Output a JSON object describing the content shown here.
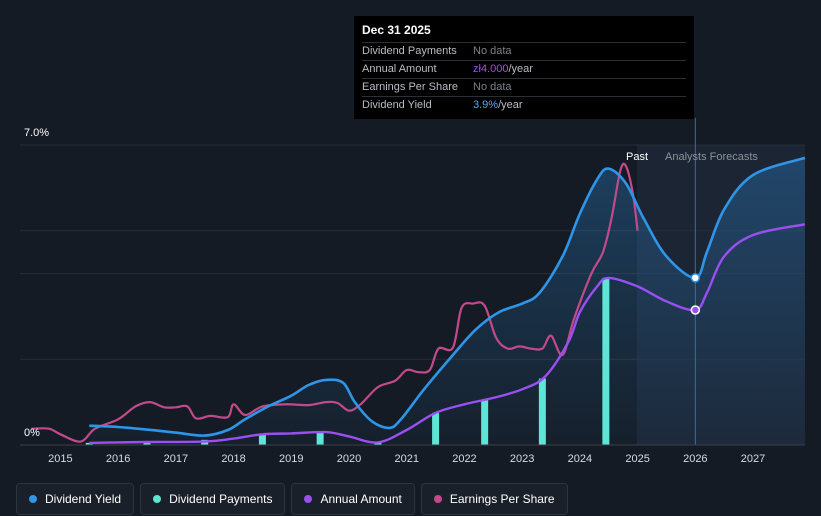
{
  "tooltip": {
    "date": "Dec 31 2025",
    "rows": [
      {
        "label": "Dividend Payments",
        "value": "No data",
        "unit": ""
      },
      {
        "label": "Annual Amount",
        "value": "zł4.000",
        "unit": "/year"
      },
      {
        "label": "Earnings Per Share",
        "value": "No data",
        "unit": ""
      },
      {
        "label": "Dividend Yield",
        "value": "3.9%",
        "unit": "/year"
      }
    ]
  },
  "colors": {
    "background": "#151b24",
    "dividend_yield": "#2e95e8",
    "dividend_payments": "#5de6d6",
    "annual_amount": "#9a4ff0",
    "earnings_per_share": "#c24a8c"
  },
  "legend": [
    {
      "label": "Dividend Yield",
      "color": "#2e95e8"
    },
    {
      "label": "Dividend Payments",
      "color": "#5de6d6"
    },
    {
      "label": "Annual Amount",
      "color": "#9a4ff0"
    },
    {
      "label": "Earnings Per Share",
      "color": "#c24a8c"
    }
  ],
  "chart_data": {
    "type": "line",
    "ylabel_top": "7.0%",
    "ylabel_bottom": "0%",
    "ylim": [
      0,
      7
    ],
    "xlim": [
      2014.3,
      2027.9
    ],
    "x_ticks": [
      2015,
      2016,
      2017,
      2018,
      2019,
      2020,
      2021,
      2022,
      2023,
      2024,
      2025,
      2026,
      2027
    ],
    "past_label": "Past",
    "forecast_label": "Analysts Forecasts",
    "forecast_start": 2025.0,
    "cursor_x": 2026.0,
    "series": [
      {
        "name": "Dividend Yield",
        "points": [
          [
            2015.5,
            0.45
          ],
          [
            2016.0,
            0.42
          ],
          [
            2016.5,
            0.36
          ],
          [
            2017.0,
            0.29
          ],
          [
            2017.5,
            0.22
          ],
          [
            2017.9,
            0.35
          ],
          [
            2018.2,
            0.6
          ],
          [
            2018.6,
            0.9
          ],
          [
            2019.0,
            1.15
          ],
          [
            2019.3,
            1.4
          ],
          [
            2019.6,
            1.52
          ],
          [
            2019.9,
            1.45
          ],
          [
            2020.1,
            1.0
          ],
          [
            2020.4,
            0.55
          ],
          [
            2020.7,
            0.4
          ],
          [
            2020.9,
            0.6
          ],
          [
            2021.3,
            1.3
          ],
          [
            2021.8,
            2.1
          ],
          [
            2022.2,
            2.7
          ],
          [
            2022.6,
            3.1
          ],
          [
            2023.0,
            3.3
          ],
          [
            2023.3,
            3.55
          ],
          [
            2023.7,
            4.4
          ],
          [
            2024.0,
            5.4
          ],
          [
            2024.3,
            6.2
          ],
          [
            2024.5,
            6.45
          ],
          [
            2024.8,
            6.1
          ],
          [
            2025.1,
            5.3
          ],
          [
            2025.5,
            4.4
          ],
          [
            2026.0,
            3.9
          ],
          [
            2026.2,
            4.5
          ],
          [
            2026.5,
            5.5
          ],
          [
            2027.0,
            6.3
          ],
          [
            2027.9,
            6.7
          ]
        ]
      },
      {
        "name": "Annual Amount",
        "points": [
          [
            2015.5,
            0.05
          ],
          [
            2016.0,
            0.06
          ],
          [
            2016.5,
            0.07
          ],
          [
            2017.5,
            0.08
          ],
          [
            2018.0,
            0.15
          ],
          [
            2018.5,
            0.25
          ],
          [
            2019.0,
            0.27
          ],
          [
            2019.6,
            0.3
          ],
          [
            2020.0,
            0.2
          ],
          [
            2020.5,
            0.06
          ],
          [
            2021.0,
            0.35
          ],
          [
            2021.5,
            0.75
          ],
          [
            2022.0,
            0.95
          ],
          [
            2022.5,
            1.1
          ],
          [
            2023.0,
            1.3
          ],
          [
            2023.4,
            1.6
          ],
          [
            2023.8,
            2.4
          ],
          [
            2024.0,
            3.1
          ],
          [
            2024.3,
            3.7
          ],
          [
            2024.5,
            3.9
          ],
          [
            2025.0,
            3.7
          ],
          [
            2025.5,
            3.35
          ],
          [
            2026.0,
            3.15
          ],
          [
            2026.2,
            3.55
          ],
          [
            2026.5,
            4.4
          ],
          [
            2027.0,
            4.9
          ],
          [
            2027.9,
            5.15
          ]
        ]
      },
      {
        "name": "Earnings Per Share",
        "points": [
          [
            2014.5,
            0.38
          ],
          [
            2014.8,
            0.38
          ],
          [
            2015.0,
            0.25
          ],
          [
            2015.35,
            0.08
          ],
          [
            2015.6,
            0.38
          ],
          [
            2016.0,
            0.6
          ],
          [
            2016.3,
            0.9
          ],
          [
            2016.55,
            1.0
          ],
          [
            2016.8,
            0.88
          ],
          [
            2017.0,
            0.88
          ],
          [
            2017.2,
            0.9
          ],
          [
            2017.35,
            0.62
          ],
          [
            2017.6,
            0.68
          ],
          [
            2017.9,
            0.65
          ],
          [
            2018.0,
            0.95
          ],
          [
            2018.2,
            0.7
          ],
          [
            2018.5,
            0.9
          ],
          [
            2018.9,
            0.95
          ],
          [
            2019.3,
            0.93
          ],
          [
            2019.6,
            1.0
          ],
          [
            2019.8,
            0.98
          ],
          [
            2020.0,
            0.8
          ],
          [
            2020.2,
            0.95
          ],
          [
            2020.5,
            1.35
          ],
          [
            2020.8,
            1.5
          ],
          [
            2021.0,
            1.75
          ],
          [
            2021.2,
            1.7
          ],
          [
            2021.4,
            1.75
          ],
          [
            2021.55,
            2.25
          ],
          [
            2021.8,
            2.27
          ],
          [
            2021.95,
            3.2
          ],
          [
            2022.15,
            3.3
          ],
          [
            2022.35,
            3.25
          ],
          [
            2022.55,
            2.5
          ],
          [
            2022.75,
            2.25
          ],
          [
            2022.95,
            2.3
          ],
          [
            2023.15,
            2.25
          ],
          [
            2023.35,
            2.25
          ],
          [
            2023.5,
            2.55
          ],
          [
            2023.7,
            2.1
          ],
          [
            2023.9,
            2.95
          ],
          [
            2024.2,
            4.0
          ],
          [
            2024.4,
            4.5
          ],
          [
            2024.55,
            5.3
          ],
          [
            2024.7,
            6.4
          ],
          [
            2024.8,
            6.5
          ],
          [
            2024.92,
            5.85
          ],
          [
            2025.0,
            5.0
          ]
        ]
      },
      {
        "name": "Dividend Payments",
        "type": "bar",
        "points": [
          [
            2015.5,
            0.05
          ],
          [
            2016.5,
            0.07
          ],
          [
            2017.5,
            0.12
          ],
          [
            2018.5,
            0.25
          ],
          [
            2019.5,
            0.3
          ],
          [
            2020.5,
            0.06
          ],
          [
            2021.5,
            0.75
          ],
          [
            2022.35,
            1.05
          ],
          [
            2023.35,
            1.55
          ],
          [
            2024.45,
            3.9
          ]
        ]
      }
    ],
    "markers": [
      {
        "series": "Dividend Yield",
        "x": 2026.0,
        "y": 3.9
      },
      {
        "series": "Annual Amount",
        "x": 2026.0,
        "y": 3.15
      }
    ]
  }
}
